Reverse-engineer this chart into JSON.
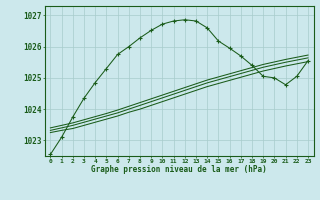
{
  "title": "Graphe pression niveau de la mer (hPa)",
  "bg_color": "#cce8ec",
  "grid_color": "#a8cccc",
  "line_color": "#1a5c1a",
  "x_ticks": [
    0,
    1,
    2,
    3,
    4,
    5,
    6,
    7,
    8,
    9,
    10,
    11,
    12,
    13,
    14,
    15,
    16,
    17,
    18,
    19,
    20,
    21,
    22,
    23
  ],
  "ylim": [
    1022.5,
    1027.3
  ],
  "yticks": [
    1023,
    1024,
    1025,
    1026,
    1027
  ],
  "main_line": [
    1022.55,
    1023.1,
    1023.75,
    1024.35,
    1024.85,
    1025.3,
    1025.75,
    1026.0,
    1026.28,
    1026.52,
    1026.72,
    1026.82,
    1026.86,
    1026.82,
    1026.6,
    1026.18,
    1025.95,
    1025.7,
    1025.4,
    1025.05,
    1025.0,
    1024.78,
    1025.05,
    1025.55
  ],
  "ref_line1": [
    1023.25,
    1023.32,
    1023.38,
    1023.48,
    1023.58,
    1023.68,
    1023.78,
    1023.9,
    1024.0,
    1024.12,
    1024.24,
    1024.36,
    1024.48,
    1024.6,
    1024.72,
    1024.82,
    1024.92,
    1025.02,
    1025.12,
    1025.22,
    1025.3,
    1025.38,
    1025.45,
    1025.52
  ],
  "ref_line2": [
    1023.32,
    1023.4,
    1023.48,
    1023.58,
    1023.68,
    1023.78,
    1023.88,
    1024.0,
    1024.12,
    1024.24,
    1024.36,
    1024.48,
    1024.6,
    1024.72,
    1024.84,
    1024.94,
    1025.04,
    1025.14,
    1025.24,
    1025.34,
    1025.42,
    1025.5,
    1025.57,
    1025.64
  ],
  "ref_line3": [
    1023.4,
    1023.48,
    1023.56,
    1023.66,
    1023.76,
    1023.86,
    1023.97,
    1024.09,
    1024.21,
    1024.33,
    1024.45,
    1024.57,
    1024.69,
    1024.81,
    1024.93,
    1025.03,
    1025.13,
    1025.23,
    1025.33,
    1025.43,
    1025.51,
    1025.59,
    1025.66,
    1025.73
  ]
}
